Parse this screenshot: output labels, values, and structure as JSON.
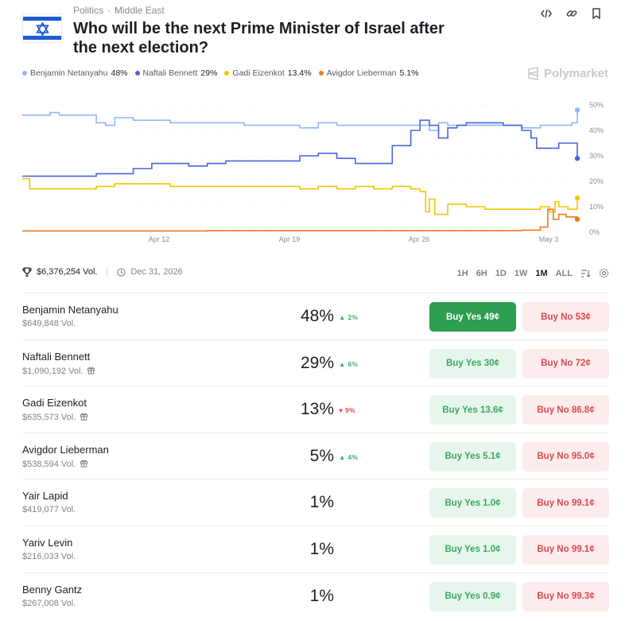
{
  "header": {
    "category": "Politics",
    "subcategory": "Middle East",
    "title": "Who will be the next Prime Minister of Israel after the next election?",
    "icons": [
      "embed-icon",
      "link-icon",
      "bookmark-icon"
    ]
  },
  "brand": "Polymarket",
  "legend": [
    {
      "name": "Benjamin Netanyahu",
      "value": "48%",
      "color": "#8fb8f5"
    },
    {
      "name": "Naftali Bennett",
      "value": "29%",
      "color": "#4a63e0"
    },
    {
      "name": "Gadi Eizenkot",
      "value": "13.4%",
      "color": "#f2c700"
    },
    {
      "name": "Avigdor Lieberman",
      "value": "5.1%",
      "color": "#f07a1a"
    }
  ],
  "chart_data": {
    "type": "line",
    "x_ticks": [
      "Apr 12",
      "Apr 19",
      "Apr 26",
      "May 3"
    ],
    "y_ticks": [
      "50%",
      "40%",
      "30%",
      "20%",
      "10%",
      "0%"
    ],
    "ylim": [
      0,
      50
    ],
    "x_days": [
      0,
      30
    ],
    "grid": false,
    "series": [
      {
        "name": "Benjamin Netanyahu",
        "color": "#8fb8f5",
        "end": 48,
        "points": [
          [
            0,
            46
          ],
          [
            1,
            46
          ],
          [
            1.5,
            47
          ],
          [
            2,
            46
          ],
          [
            3,
            46
          ],
          [
            4,
            43
          ],
          [
            4.5,
            42
          ],
          [
            5,
            45
          ],
          [
            6,
            44
          ],
          [
            8,
            43
          ],
          [
            10,
            43
          ],
          [
            12,
            42
          ],
          [
            14,
            42
          ],
          [
            15,
            41
          ],
          [
            16,
            43
          ],
          [
            17,
            42
          ],
          [
            18,
            42
          ],
          [
            20,
            42
          ],
          [
            21,
            42
          ],
          [
            22,
            40
          ],
          [
            22.5,
            43
          ],
          [
            23,
            42
          ],
          [
            24,
            42
          ],
          [
            25,
            42
          ],
          [
            26,
            42
          ],
          [
            27,
            41
          ],
          [
            28,
            42
          ],
          [
            29,
            42
          ],
          [
            29.7,
            43
          ],
          [
            30,
            48
          ]
        ]
      },
      {
        "name": "Naftali Bennett",
        "color": "#4a63e0",
        "end": 29,
        "points": [
          [
            0,
            22
          ],
          [
            2,
            22
          ],
          [
            3,
            22
          ],
          [
            4,
            23
          ],
          [
            5,
            23
          ],
          [
            6,
            25
          ],
          [
            7,
            27
          ],
          [
            8,
            27
          ],
          [
            9,
            26
          ],
          [
            10,
            27
          ],
          [
            11,
            28
          ],
          [
            12,
            28
          ],
          [
            13,
            28
          ],
          [
            14,
            28
          ],
          [
            15,
            30
          ],
          [
            16,
            31
          ],
          [
            17,
            29
          ],
          [
            18,
            27
          ],
          [
            19,
            27
          ],
          [
            20,
            34
          ],
          [
            21,
            40
          ],
          [
            21.5,
            44
          ],
          [
            22,
            42
          ],
          [
            22.5,
            37
          ],
          [
            23,
            41
          ],
          [
            23.5,
            42
          ],
          [
            24,
            43
          ],
          [
            25,
            43
          ],
          [
            26,
            42
          ],
          [
            27,
            40
          ],
          [
            27.5,
            37
          ],
          [
            27.8,
            33
          ],
          [
            28.5,
            33
          ],
          [
            29,
            35
          ],
          [
            29.7,
            35
          ],
          [
            30,
            29
          ]
        ]
      },
      {
        "name": "Gadi Eizenkot",
        "color": "#f2c700",
        "end": 13.4,
        "points": [
          [
            0,
            21
          ],
          [
            0.4,
            17
          ],
          [
            1,
            17
          ],
          [
            2,
            17
          ],
          [
            3,
            17
          ],
          [
            4,
            18
          ],
          [
            5,
            19
          ],
          [
            6,
            19
          ],
          [
            7,
            19
          ],
          [
            8,
            18
          ],
          [
            9,
            18
          ],
          [
            10,
            18
          ],
          [
            12,
            18
          ],
          [
            13,
            18
          ],
          [
            14,
            18
          ],
          [
            15,
            17
          ],
          [
            16,
            18
          ],
          [
            17,
            17
          ],
          [
            18,
            18
          ],
          [
            19,
            17
          ],
          [
            20,
            18
          ],
          [
            21,
            17
          ],
          [
            21.5,
            16
          ],
          [
            21.8,
            8
          ],
          [
            22,
            13
          ],
          [
            22.3,
            7
          ],
          [
            23,
            11
          ],
          [
            24,
            10
          ],
          [
            25,
            9
          ],
          [
            26,
            9
          ],
          [
            27,
            9
          ],
          [
            28,
            10
          ],
          [
            28.5,
            8
          ],
          [
            28.8,
            12
          ],
          [
            29,
            10
          ],
          [
            29.5,
            9
          ],
          [
            30,
            13.4
          ]
        ]
      },
      {
        "name": "Avigdor Lieberman",
        "color": "#f07a1a",
        "end": 5.1,
        "points": [
          [
            0,
            0.5
          ],
          [
            5,
            0.5
          ],
          [
            10,
            0.6
          ],
          [
            15,
            0.6
          ],
          [
            20,
            0.6
          ],
          [
            25,
            0.6
          ],
          [
            27,
            0.8
          ],
          [
            28,
            2
          ],
          [
            28.4,
            9
          ],
          [
            28.7,
            5
          ],
          [
            29,
            7
          ],
          [
            29.4,
            6
          ],
          [
            30,
            5.1
          ]
        ]
      }
    ]
  },
  "meta": {
    "volume": "$6,376,254 Vol.",
    "end_date": "Dec 31, 2026",
    "ranges": [
      "1H",
      "6H",
      "1D",
      "1W",
      "1M",
      "ALL"
    ],
    "active_range": "1M"
  },
  "outcomes": [
    {
      "name": "Benjamin Netanyahu",
      "volume": "$649,848 Vol.",
      "gift": false,
      "pct": "48%",
      "change": "2%",
      "dir": "up",
      "yes": "Buy Yes 49¢",
      "no": "Buy No 53¢",
      "primary": true
    },
    {
      "name": "Naftali Bennett",
      "volume": "$1,090,192 Vol.",
      "gift": true,
      "pct": "29%",
      "change": "6%",
      "dir": "up",
      "yes": "Buy Yes 30¢",
      "no": "Buy No 72¢",
      "primary": false
    },
    {
      "name": "Gadi Eizenkot",
      "volume": "$635,573 Vol.",
      "gift": true,
      "pct": "13%",
      "change": "9%",
      "dir": "down",
      "yes": "Buy Yes 13.6¢",
      "no": "Buy No 86.8¢",
      "primary": false
    },
    {
      "name": "Avigdor Lieberman",
      "volume": "$538,594 Vol.",
      "gift": true,
      "pct": "5%",
      "change": "4%",
      "dir": "up",
      "yes": "Buy Yes 5.1¢",
      "no": "Buy No 95.0¢",
      "primary": false
    },
    {
      "name": "Yair Lapid",
      "volume": "$419,077 Vol.",
      "gift": false,
      "pct": "1%",
      "change": "",
      "dir": "",
      "yes": "Buy Yes 1.0¢",
      "no": "Buy No 99.1¢",
      "primary": false
    },
    {
      "name": "Yariv Levin",
      "volume": "$216,033 Vol.",
      "gift": false,
      "pct": "1%",
      "change": "",
      "dir": "",
      "yes": "Buy Yes 1.0¢",
      "no": "Buy No 99.1¢",
      "primary": false
    },
    {
      "name": "Benny Gantz",
      "volume": "$267,008 Vol.",
      "gift": false,
      "pct": "1%",
      "change": "",
      "dir": "",
      "yes": "Buy Yes 0.9¢",
      "no": "Buy No 99.3¢",
      "primary": false
    }
  ]
}
